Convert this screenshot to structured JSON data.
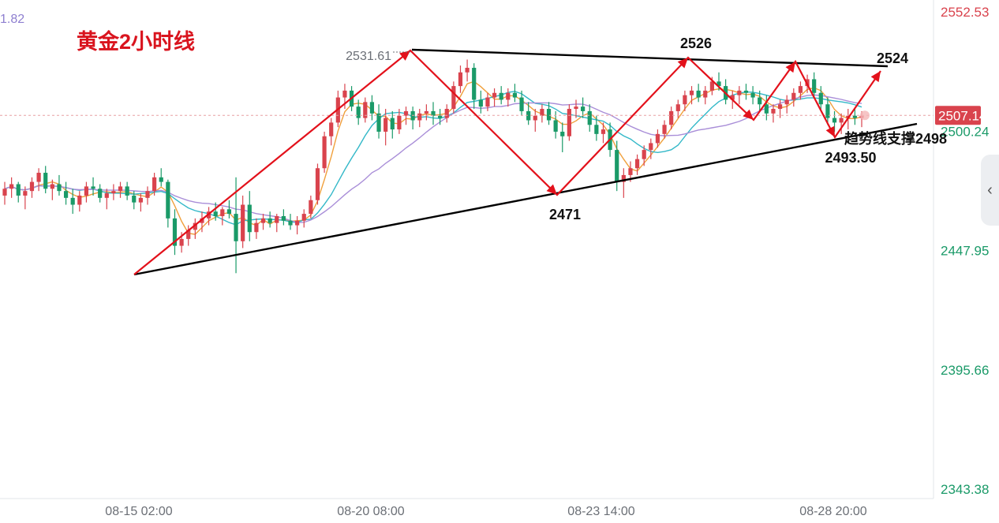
{
  "chart_data": {
    "type": "candlestick",
    "title": "黄金2小时线",
    "y_ticks": [
      "2552.53",
      "2500.24",
      "2447.95",
      "2395.66",
      "2343.38"
    ],
    "x_ticks": [
      "08-15 02:00",
      "08-20 08:00",
      "08-23 14:00",
      "08-28 20:00"
    ],
    "last_price": "2507.14",
    "ylim": [
      2343.38,
      2552.53
    ],
    "cut_label": "1.82",
    "high_marker": "2531.61",
    "annotations": {
      "peak1": "2526",
      "peak2": "2524",
      "low1": "2471",
      "low2": "2493.50",
      "support": "趋势线支撑2498"
    },
    "candles": [
      [
        2472,
        2478,
        2468,
        2475
      ],
      [
        2475,
        2480,
        2471,
        2477
      ],
      [
        2477,
        2478,
        2469,
        2472
      ],
      [
        2472,
        2476,
        2466,
        2474
      ],
      [
        2474,
        2480,
        2471,
        2478
      ],
      [
        2478,
        2484,
        2474,
        2482
      ],
      [
        2482,
        2485,
        2473,
        2475
      ],
      [
        2475,
        2479,
        2470,
        2477
      ],
      [
        2477,
        2481,
        2472,
        2474
      ],
      [
        2474,
        2478,
        2468,
        2471
      ],
      [
        2471,
        2475,
        2464,
        2468
      ],
      [
        2468,
        2474,
        2465,
        2472
      ],
      [
        2472,
        2478,
        2469,
        2476
      ],
      [
        2476,
        2480,
        2472,
        2475
      ],
      [
        2475,
        2477,
        2469,
        2471
      ],
      [
        2471,
        2475,
        2466,
        2473
      ],
      [
        2473,
        2477,
        2470,
        2474
      ],
      [
        2474,
        2478,
        2471,
        2476
      ],
      [
        2476,
        2478,
        2470,
        2472
      ],
      [
        2472,
        2474,
        2466,
        2469
      ],
      [
        2469,
        2473,
        2465,
        2471
      ],
      [
        2471,
        2476,
        2468,
        2474
      ],
      [
        2474,
        2482,
        2472,
        2480
      ],
      [
        2480,
        2484,
        2476,
        2478
      ],
      [
        2478,
        2479,
        2458,
        2462
      ],
      [
        2462,
        2466,
        2446,
        2450
      ],
      [
        2450,
        2456,
        2447,
        2453
      ],
      [
        2453,
        2459,
        2450,
        2457
      ],
      [
        2457,
        2462,
        2453,
        2460
      ],
      [
        2460,
        2465,
        2456,
        2462
      ],
      [
        2462,
        2467,
        2459,
        2465
      ],
      [
        2465,
        2469,
        2461,
        2463
      ],
      [
        2463,
        2467,
        2459,
        2466
      ],
      [
        2466,
        2470,
        2462,
        2464
      ],
      [
        2464,
        2480,
        2438,
        2452
      ],
      [
        2452,
        2472,
        2449,
        2468
      ],
      [
        2468,
        2474,
        2452,
        2456
      ],
      [
        2456,
        2462,
        2453,
        2460
      ],
      [
        2460,
        2464,
        2457,
        2462
      ],
      [
        2462,
        2465,
        2458,
        2460
      ],
      [
        2460,
        2464,
        2456,
        2463
      ],
      [
        2463,
        2466,
        2459,
        2461
      ],
      [
        2461,
        2464,
        2457,
        2459
      ],
      [
        2459,
        2463,
        2455,
        2461
      ],
      [
        2461,
        2466,
        2458,
        2464
      ],
      [
        2464,
        2472,
        2462,
        2470
      ],
      [
        2470,
        2486,
        2468,
        2484
      ],
      [
        2484,
        2500,
        2482,
        2498
      ],
      [
        2498,
        2506,
        2494,
        2504
      ],
      [
        2504,
        2518,
        2502,
        2515
      ],
      [
        2515,
        2521,
        2510,
        2518
      ],
      [
        2518,
        2520,
        2509,
        2511
      ],
      [
        2511,
        2514,
        2503,
        2506
      ],
      [
        2506,
        2515,
        2504,
        2513
      ],
      [
        2513,
        2516,
        2505,
        2508
      ],
      [
        2508,
        2512,
        2497,
        2500
      ],
      [
        2500,
        2510,
        2494,
        2506
      ],
      [
        2506,
        2509,
        2497,
        2501
      ],
      [
        2501,
        2510,
        2499,
        2507
      ],
      [
        2507,
        2511,
        2503,
        2509
      ],
      [
        2509,
        2511,
        2501,
        2505
      ],
      [
        2505,
        2510,
        2502,
        2508
      ],
      [
        2508,
        2512,
        2505,
        2509
      ],
      [
        2509,
        2513,
        2503,
        2507
      ],
      [
        2507,
        2510,
        2503,
        2506
      ],
      [
        2506,
        2512,
        2504,
        2510
      ],
      [
        2510,
        2522,
        2508,
        2520
      ],
      [
        2520,
        2529,
        2517,
        2526
      ],
      [
        2526,
        2531.61,
        2522,
        2528
      ],
      [
        2528,
        2530,
        2510,
        2514
      ],
      [
        2514,
        2518,
        2508,
        2511
      ],
      [
        2511,
        2517,
        2509,
        2515
      ],
      [
        2515,
        2519,
        2511,
        2517
      ],
      [
        2517,
        2520,
        2512,
        2514
      ],
      [
        2514,
        2519,
        2511,
        2517
      ],
      [
        2517,
        2521,
        2513,
        2515
      ],
      [
        2515,
        2518,
        2507,
        2509
      ],
      [
        2509,
        2513,
        2503,
        2505
      ],
      [
        2505,
        2510,
        2500,
        2507
      ],
      [
        2507,
        2512,
        2504,
        2510
      ],
      [
        2510,
        2513,
        2503,
        2505
      ],
      [
        2505,
        2509,
        2497,
        2500
      ],
      [
        2500,
        2504,
        2491,
        2498
      ],
      [
        2498,
        2512,
        2496,
        2510
      ],
      [
        2510,
        2514,
        2506,
        2511
      ],
      [
        2511,
        2515,
        2506,
        2509
      ],
      [
        2509,
        2512,
        2500,
        2503
      ],
      [
        2503,
        2507,
        2496,
        2499
      ],
      [
        2499,
        2504,
        2495,
        2501
      ],
      [
        2501,
        2504,
        2489,
        2492
      ],
      [
        2492,
        2496,
        2474,
        2478
      ],
      [
        2478,
        2484,
        2471,
        2481
      ],
      [
        2481,
        2487,
        2478,
        2484
      ],
      [
        2484,
        2490,
        2481,
        2488
      ],
      [
        2488,
        2494,
        2485,
        2492
      ],
      [
        2492,
        2497,
        2488,
        2495
      ],
      [
        2495,
        2501,
        2493,
        2499
      ],
      [
        2499,
        2505,
        2497,
        2503
      ],
      [
        2503,
        2511,
        2501,
        2509
      ],
      [
        2509,
        2514,
        2506,
        2512
      ],
      [
        2512,
        2518,
        2509,
        2516
      ],
      [
        2516,
        2520,
        2512,
        2518
      ],
      [
        2518,
        2521,
        2513,
        2515
      ],
      [
        2515,
        2520,
        2512,
        2518
      ],
      [
        2518,
        2524,
        2516,
        2522
      ],
      [
        2522,
        2526,
        2518,
        2520
      ],
      [
        2520,
        2523,
        2512,
        2514
      ],
      [
        2514,
        2518,
        2510,
        2516
      ],
      [
        2516,
        2520,
        2512,
        2518
      ],
      [
        2518,
        2521,
        2514,
        2517
      ],
      [
        2517,
        2520,
        2512,
        2515
      ],
      [
        2515,
        2518,
        2509,
        2512
      ],
      [
        2512,
        2516,
        2505,
        2508
      ],
      [
        2508,
        2512,
        2504,
        2510
      ],
      [
        2510,
        2514,
        2506,
        2512
      ],
      [
        2512,
        2516,
        2508,
        2514
      ],
      [
        2514,
        2519,
        2511,
        2517
      ],
      [
        2517,
        2522,
        2514,
        2520
      ],
      [
        2520,
        2525,
        2517,
        2523
      ],
      [
        2523,
        2526,
        2515,
        2517
      ],
      [
        2517,
        2520,
        2509,
        2512
      ],
      [
        2512,
        2515,
        2503,
        2506
      ],
      [
        2506,
        2509,
        2500,
        2504
      ],
      [
        2504,
        2508,
        2499,
        2506
      ],
      [
        2506,
        2510,
        2501,
        2507
      ],
      [
        2507,
        2510,
        2503,
        2506
      ],
      [
        2506,
        2509,
        2502,
        2507
      ]
    ]
  }
}
